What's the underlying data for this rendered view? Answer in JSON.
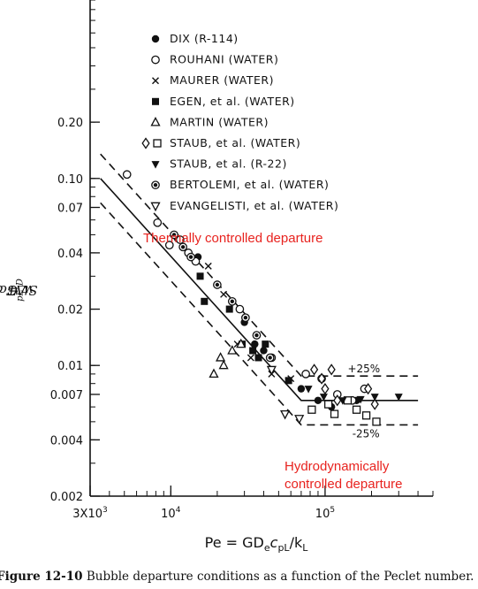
{
  "chart_data": {
    "type": "scatter",
    "x_axis": {
      "label": "Pe = GD",
      "label_sub": "e",
      "label_mid": "c",
      "label_sub2": "pL",
      "label_end": "/k",
      "label_sub3": "L",
      "scale": "log",
      "range": [
        3000,
        500000
      ],
      "tick_labels": [
        "3X10",
        "10",
        "10"
      ],
      "tick_exponents": [
        "3",
        "4",
        "5"
      ],
      "tick_values": [
        3000,
        10000,
        100000
      ]
    },
    "y_axis": {
      "label": "St = q",
      "label_rest": "w Gc",
      "label_sub": "pL",
      "label_end": "ΔT",
      "label_sub2": "D",
      "scale": "log",
      "range": [
        0.002,
        0.9
      ],
      "tick_labels": [
        "0.20",
        "0.10",
        "0.07",
        "0.04",
        "0.02",
        "0.01",
        "0.007",
        "0.004",
        "0.002"
      ],
      "tick_values": [
        0.2,
        0.1,
        0.07,
        0.04,
        0.02,
        0.01,
        0.007,
        0.004,
        0.002
      ]
    },
    "legend": {
      "placement": "top-center",
      "entries": [
        {
          "marker": "filled-circle",
          "label": "DIX (R-114)"
        },
        {
          "marker": "open-circle",
          "label": "ROUHANI (WATER)"
        },
        {
          "marker": "x",
          "label": "MAURER (WATER)"
        },
        {
          "marker": "filled-square",
          "label": "EGEN, et al. (WATER)"
        },
        {
          "marker": "open-triangle-up",
          "label": "MARTIN (WATER)"
        },
        {
          "marker": "open-diamond",
          "marker2": "open-square",
          "label": "STAUB, et al. (WATER)"
        },
        {
          "marker": "filled-triangle-down",
          "label": "STAUB, et al. (R-22)"
        },
        {
          "marker": "crossed-circle",
          "label": "BERTOLEMI, et al. (WATER)"
        },
        {
          "marker": "open-triangle-down",
          "label": "EVANGELISTI, et al. (WATER)"
        }
      ]
    },
    "correlation": {
      "center": [
        [
          3500,
          0.1
        ],
        [
          70000,
          0.0065
        ],
        [
          400000,
          0.0065
        ]
      ],
      "band_labels": [
        "+25%",
        "-25%"
      ]
    },
    "annotations": [
      "Thermally controlled departure",
      "Hydrodynamically controlled departure"
    ],
    "series": [
      {
        "name": "DIX (R-114)",
        "marker": "filled-circle",
        "x": [
          11000,
          15000,
          30000,
          35000,
          40000,
          70000,
          90000,
          110000,
          160000
        ],
        "y": [
          0.048,
          0.038,
          0.017,
          0.013,
          0.012,
          0.0075,
          0.0065,
          0.006,
          0.0065
        ]
      },
      {
        "name": "ROUHANI (WATER)",
        "marker": "open-circle",
        "x": [
          5200,
          8200,
          9800,
          11500,
          13000,
          14500,
          28000,
          45000,
          75000,
          95000,
          120000,
          150000,
          180000
        ],
        "y": [
          0.105,
          0.058,
          0.044,
          0.047,
          0.04,
          0.036,
          0.02,
          0.011,
          0.009,
          0.0085,
          0.007,
          0.0065,
          0.0075
        ]
      },
      {
        "name": "MAURER (WATER)",
        "marker": "x",
        "x": [
          17500,
          22000,
          27000,
          33000,
          45000,
          60000
        ],
        "y": [
          0.034,
          0.024,
          0.013,
          0.011,
          0.009,
          0.0085
        ]
      },
      {
        "name": "EGEN, et al. (WATER)",
        "marker": "filled-square",
        "x": [
          15500,
          16500,
          24000,
          29000,
          34000,
          37000,
          41000,
          58000
        ],
        "y": [
          0.03,
          0.022,
          0.02,
          0.013,
          0.012,
          0.011,
          0.013,
          0.0083
        ]
      },
      {
        "name": "MARTIN (WATER)",
        "marker": "open-triangle-up",
        "x": [
          19000,
          21000,
          22000,
          25000,
          28500
        ],
        "y": [
          0.009,
          0.011,
          0.01,
          0.012,
          0.013
        ]
      },
      {
        "name": "STAUB, et al. (WATER) diamond",
        "marker": "open-diamond",
        "x": [
          85000,
          95000,
          100000,
          110000,
          120000,
          190000,
          210000
        ],
        "y": [
          0.0095,
          0.0085,
          0.0075,
          0.0095,
          0.0065,
          0.0075,
          0.0062
        ]
      },
      {
        "name": "STAUB, et al. (WATER) square",
        "marker": "open-square",
        "x": [
          82000,
          105000,
          115000,
          140000,
          160000,
          185000,
          215000
        ],
        "y": [
          0.0058,
          0.0062,
          0.0055,
          0.0065,
          0.0058,
          0.0054,
          0.005
        ]
      },
      {
        "name": "STAUB, et al. (R-22)",
        "marker": "filled-triangle-down",
        "x": [
          78000,
          98000,
          130000,
          170000,
          210000,
          300000
        ],
        "y": [
          0.0075,
          0.0068,
          0.0065,
          0.0066,
          0.0068,
          0.0068
        ]
      },
      {
        "name": "BERTOLEMI, et al. (WATER)",
        "marker": "crossed-circle",
        "x": [
          10500,
          12000,
          13500,
          20000,
          25000,
          30500,
          36000,
          44000
        ],
        "y": [
          0.05,
          0.043,
          0.038,
          0.027,
          0.022,
          0.018,
          0.0145,
          0.011
        ]
      },
      {
        "name": "EVANGELISTI, et al. (WATER)",
        "marker": "open-triangle-down",
        "x": [
          45000,
          55000,
          68000
        ],
        "y": [
          0.0095,
          0.0055,
          0.0052
        ]
      }
    ]
  },
  "caption": {
    "label": "Figure 12-10",
    "text": " Bubble departure conditions as a function of the Peclet number."
  },
  "colors": {
    "ink": "#111111",
    "annotation": "#e8231f"
  }
}
